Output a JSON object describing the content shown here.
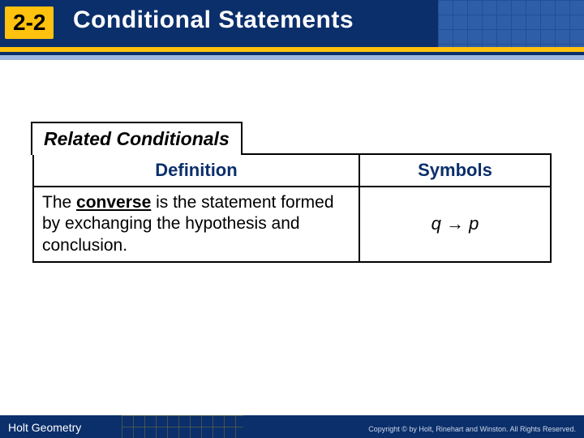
{
  "header": {
    "section_number": "2-2",
    "title": "Conditional Statements",
    "colors": {
      "banner_bg": "#0b2f6b",
      "badge_bg": "#ffc20e",
      "badge_text": "#000000",
      "title_text": "#ffffff",
      "stripe1": "#ffc20e",
      "stripe2": "#0b2f6b",
      "stripe3": "#9db7e0"
    }
  },
  "box": {
    "title": "Related Conditionals",
    "columns": {
      "definition": "Definition",
      "symbols": "Symbols"
    },
    "row": {
      "definition_pre": "The ",
      "definition_keyword": "converse",
      "definition_post": " is the statement formed by exchanging the hypothesis and conclusion.",
      "symbols": "q → p"
    },
    "styling": {
      "border_color": "#000000",
      "header_text_color": "#0b2f6b",
      "body_text_color": "#000000",
      "title_fontsize": 23,
      "header_fontsize": 22,
      "body_fontsize": 21,
      "symbols_fontsize": 22,
      "col_widths_pct": [
        63,
        37
      ]
    }
  },
  "footer": {
    "left": "Holt Geometry",
    "right": "Copyright © by Holt, Rinehart and Winston. All Rights Reserved.",
    "bg": "#0b2f6b",
    "text_color": "#ffffff"
  }
}
